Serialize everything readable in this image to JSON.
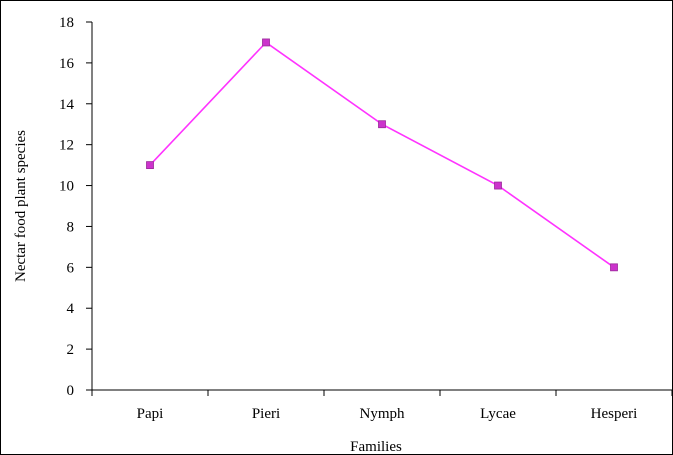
{
  "chart_data": {
    "type": "line",
    "title": "",
    "xlabel": "Families",
    "ylabel": "Nectar food plant species",
    "categories": [
      "Papi",
      "Pieri",
      "Nymph",
      "Lycae",
      "Hesperi"
    ],
    "series": [
      {
        "values": [
          11,
          17,
          13,
          10,
          6
        ],
        "color": "#ff33ff",
        "marker_color": "#cc33cc"
      }
    ],
    "ylim": [
      0,
      18
    ],
    "yticks": [
      0,
      2,
      4,
      6,
      8,
      10,
      12,
      14,
      16,
      18
    ],
    "grid": false,
    "legend": "none"
  }
}
